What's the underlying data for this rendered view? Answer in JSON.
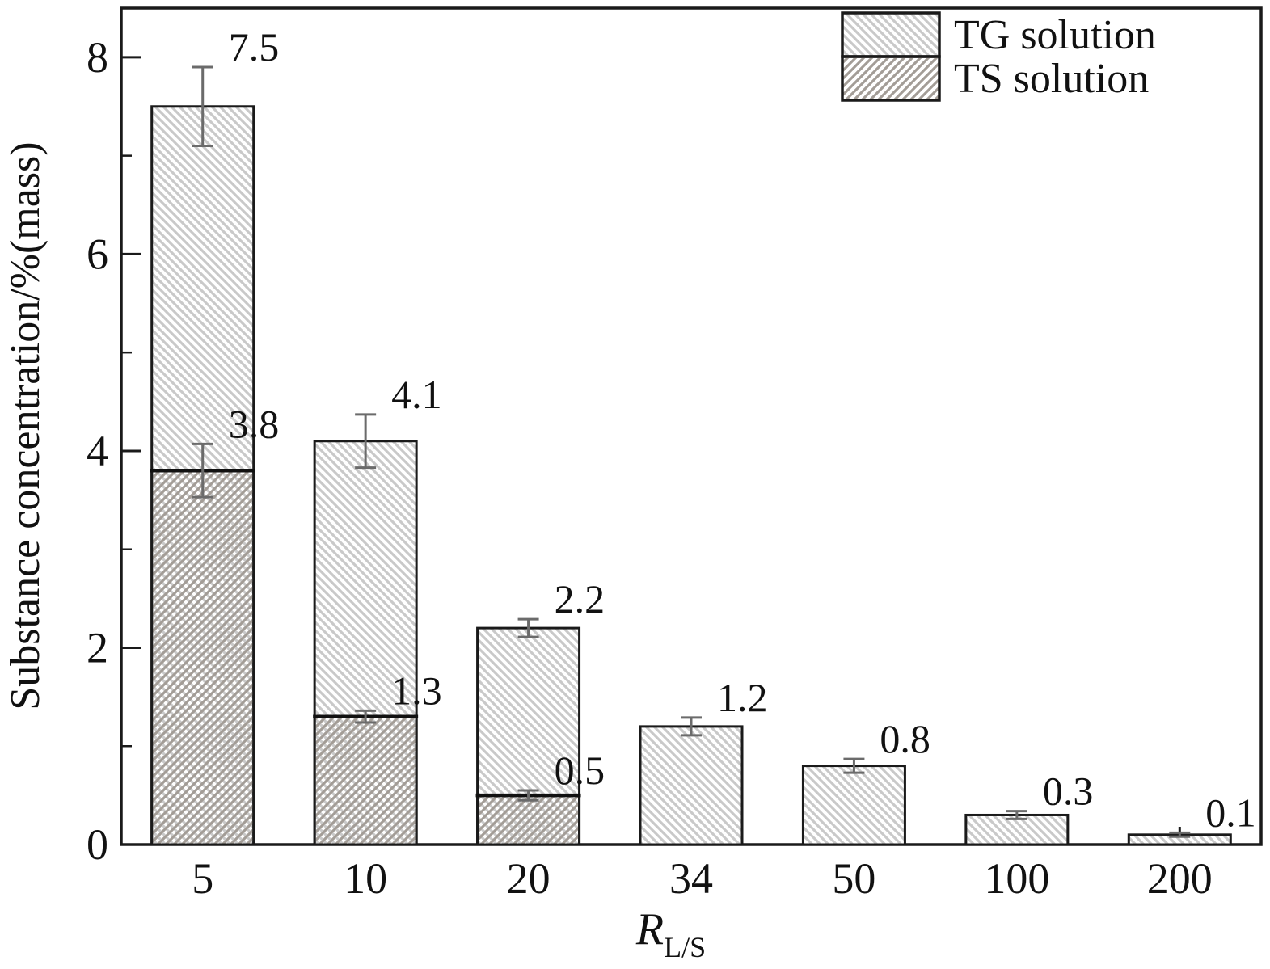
{
  "chart_data": {
    "type": "bar",
    "title": "",
    "xlabel_main": "R",
    "xlabel_sub": "L/S",
    "ylabel": "Substance concentration/%(mass)",
    "categories": [
      "5",
      "10",
      "20",
      "34",
      "50",
      "100",
      "200"
    ],
    "ylim": [
      0,
      8.5
    ],
    "yticks": [
      "0",
      "2",
      "4",
      "6",
      "8"
    ],
    "yminor": [
      1,
      3,
      5,
      7
    ],
    "grid": "off",
    "legend_position": "top-right",
    "frame_color": "#1a1a1a",
    "error_color": "#6b6b6b",
    "series": [
      {
        "name": "TG solution",
        "values": [
          7.5,
          4.1,
          2.2,
          1.2,
          0.8,
          0.3,
          0.1
        ],
        "errors": [
          0.4,
          0.27,
          0.09,
          0.09,
          0.07,
          0.04,
          0.02
        ],
        "labels": [
          "7.5",
          "4.1",
          "2.2",
          "1.2",
          "0.8",
          "0.3",
          "0.1"
        ],
        "hatch": "backslash",
        "hatch_color": "#c9c9c9"
      },
      {
        "name": "TS solution",
        "values": [
          3.8,
          1.3,
          0.5,
          null,
          null,
          null,
          null
        ],
        "errors": [
          0.27,
          0.06,
          0.05,
          null,
          null,
          null,
          null
        ],
        "labels": [
          "3.8",
          "1.3",
          "0.5",
          "",
          "",
          "",
          ""
        ],
        "hatch": "slash",
        "hatch_color": "#a39d97"
      }
    ]
  }
}
